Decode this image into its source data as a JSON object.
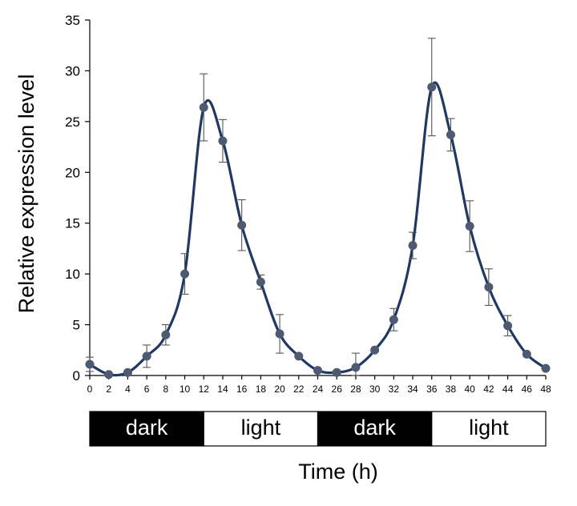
{
  "chart_data": {
    "type": "line",
    "title": "",
    "xlabel": "Time (h)",
    "ylabel": "Relative expression level",
    "xlim": [
      0,
      48
    ],
    "ylim": [
      0,
      35
    ],
    "xticks": [
      0,
      2,
      4,
      6,
      8,
      10,
      12,
      14,
      16,
      18,
      20,
      22,
      24,
      26,
      28,
      30,
      32,
      34,
      36,
      38,
      40,
      42,
      44,
      46,
      48
    ],
    "yticks": [
      0,
      5,
      10,
      15,
      20,
      25,
      30,
      35
    ],
    "grid": false,
    "series": [
      {
        "name": "Relative expression level",
        "color": "#1f3864",
        "marker_color": "#4d5a72",
        "x": [
          0,
          2,
          4,
          6,
          8,
          10,
          12,
          14,
          16,
          18,
          20,
          22,
          24,
          26,
          28,
          30,
          32,
          34,
          36,
          38,
          40,
          42,
          44,
          46,
          48
        ],
        "values": [
          1.1,
          0.1,
          0.3,
          1.9,
          4.0,
          10.0,
          26.4,
          23.1,
          14.8,
          9.2,
          4.1,
          1.9,
          0.5,
          0.3,
          0.8,
          2.5,
          5.5,
          12.8,
          28.4,
          23.7,
          14.7,
          8.7,
          4.9,
          2.1,
          0.7
        ],
        "errors": [
          0.7,
          0,
          0,
          1.1,
          1.0,
          2.0,
          3.3,
          2.1,
          2.5,
          0.7,
          1.9,
          0,
          0,
          0,
          1.4,
          0,
          1.1,
          1.3,
          4.8,
          1.6,
          2.5,
          1.8,
          1.0,
          0,
          0
        ]
      }
    ],
    "light_dark_bar": [
      {
        "label": "dark",
        "start": 0,
        "end": 12,
        "fill": "#000000",
        "text_color": "#ffffff"
      },
      {
        "label": "light",
        "start": 12,
        "end": 24,
        "fill": "#ffffff",
        "text_color": "#000000"
      },
      {
        "label": "dark",
        "start": 24,
        "end": 36,
        "fill": "#000000",
        "text_color": "#ffffff"
      },
      {
        "label": "light",
        "start": 36,
        "end": 48,
        "fill": "#ffffff",
        "text_color": "#000000"
      }
    ]
  }
}
